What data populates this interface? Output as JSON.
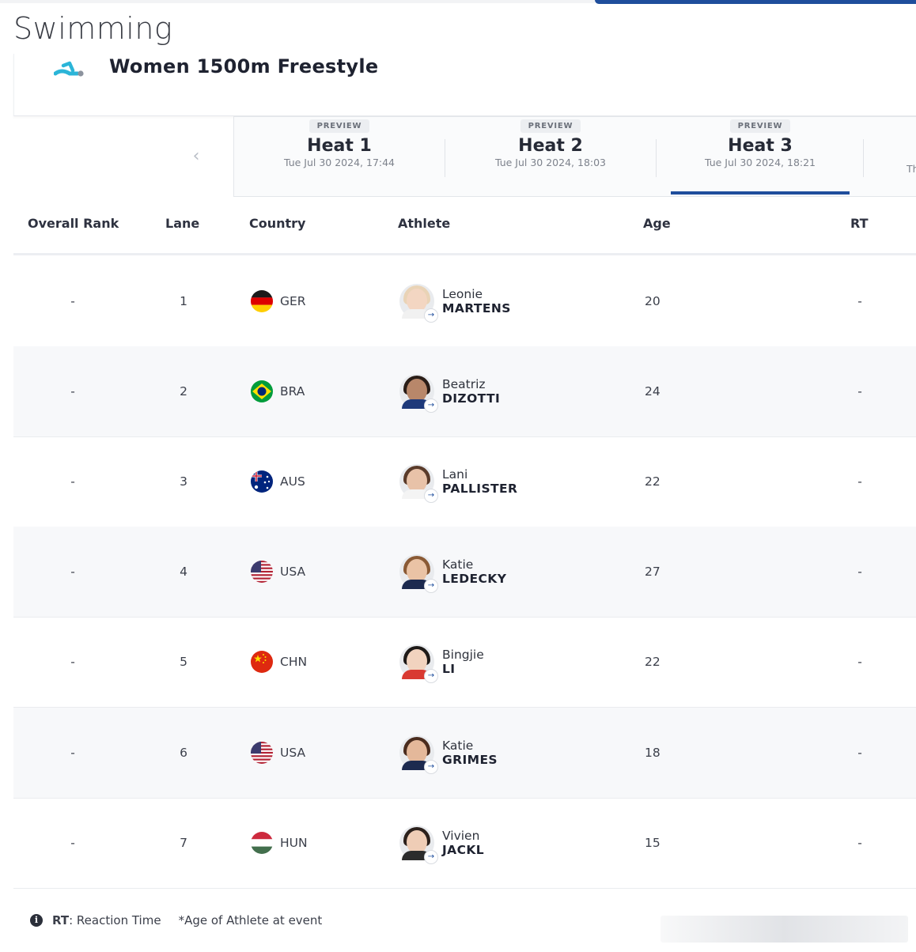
{
  "sport": "Swimming",
  "event": {
    "title": "Women 1500m Freestyle",
    "icon": "swimming-pictogram-icon"
  },
  "heats": [
    {
      "badge": "PREVIEW",
      "name": "Heat 1",
      "date": "Tue Jul 30 2024, 17:44"
    },
    {
      "badge": "PREVIEW",
      "name": "Heat 2",
      "date": "Tue Jul 30 2024, 18:03"
    },
    {
      "badge": "PREVIEW",
      "name": "Heat 3",
      "date": "Tue Jul 30 2024, 18:21"
    }
  ],
  "active_heat": "Heat 3",
  "next_heat_partial": "Th",
  "columns": {
    "rank": "Overall Rank",
    "lane": "Lane",
    "country": "Country",
    "athlete": "Athlete",
    "age": "Age",
    "rt": "RT"
  },
  "rows": [
    {
      "rank": "-",
      "lane": "1",
      "country": "GER",
      "first": "Leonie",
      "last": "MARTENS",
      "age": "20",
      "rt": "-"
    },
    {
      "rank": "-",
      "lane": "2",
      "country": "BRA",
      "first": "Beatriz",
      "last": "DIZOTTI",
      "age": "24",
      "rt": "-"
    },
    {
      "rank": "-",
      "lane": "3",
      "country": "AUS",
      "first": "Lani",
      "last": "PALLISTER",
      "age": "22",
      "rt": "-"
    },
    {
      "rank": "-",
      "lane": "4",
      "country": "USA",
      "first": "Katie",
      "last": "LEDECKY",
      "age": "27",
      "rt": "-"
    },
    {
      "rank": "-",
      "lane": "5",
      "country": "CHN",
      "first": "Bingjie",
      "last": "LI",
      "age": "22",
      "rt": "-"
    },
    {
      "rank": "-",
      "lane": "6",
      "country": "USA",
      "first": "Katie",
      "last": "GRIMES",
      "age": "18",
      "rt": "-"
    },
    {
      "rank": "-",
      "lane": "7",
      "country": "HUN",
      "first": "Vivien",
      "last": "JACKL",
      "age": "15",
      "rt": "-"
    }
  ],
  "footer": {
    "rt_abbr": "RT",
    "rt_text": ": Reaction Time",
    "age_note": "*Age of Athlete at event"
  },
  "colors": {
    "accent": "#1f4e9c",
    "pictogram": "#2bb5d8"
  }
}
